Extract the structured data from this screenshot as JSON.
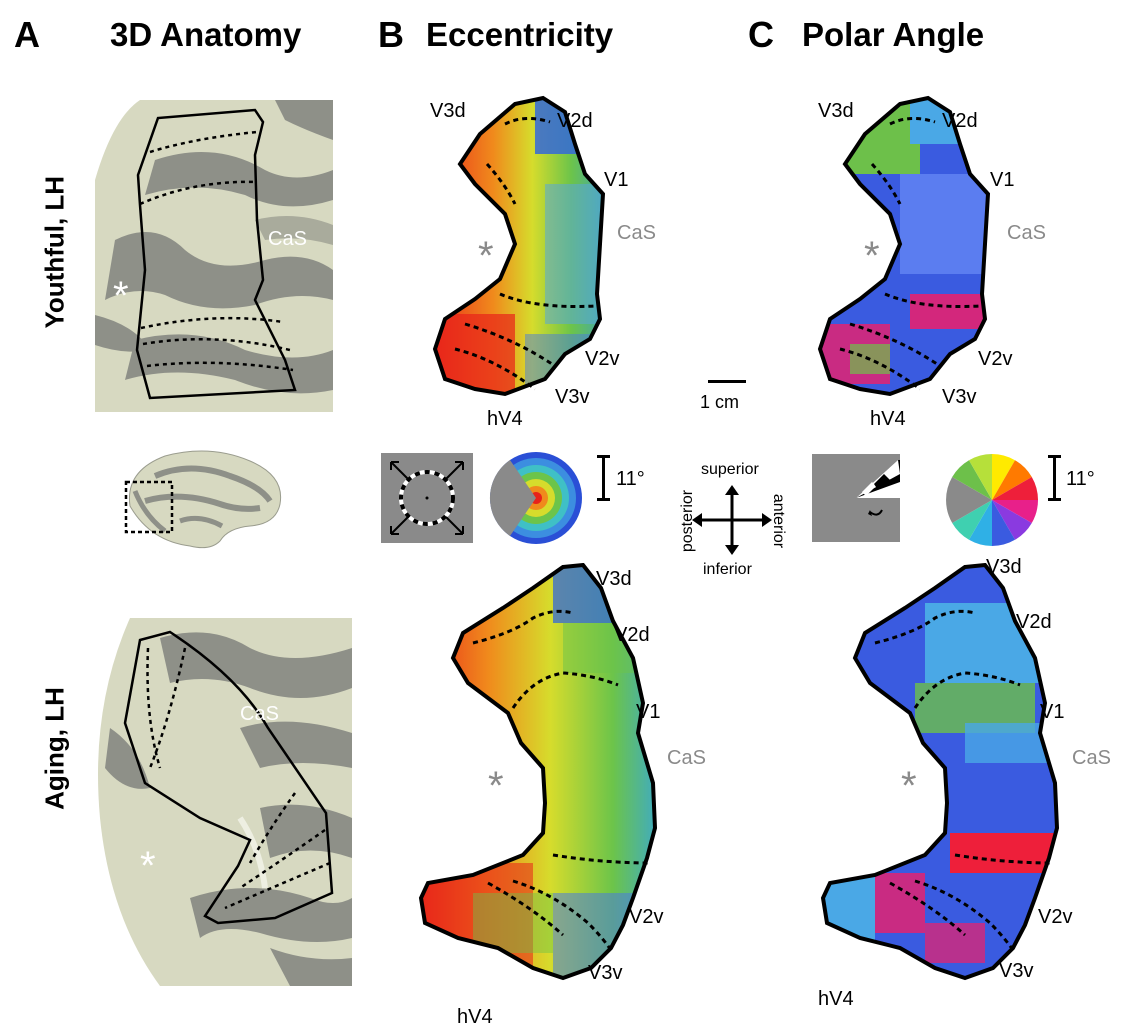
{
  "panels": {
    "a": {
      "letter": "A",
      "title": "3D Anatomy"
    },
    "b": {
      "letter": "B",
      "title": "Eccentricity"
    },
    "c": {
      "letter": "C",
      "title": "Polar Angle"
    }
  },
  "rows": {
    "top": "Youthful, LH",
    "bottom": "Aging, LH"
  },
  "labels": {
    "v3d": "V3d",
    "v2d": "V2d",
    "v1": "V1",
    "cas": "CaS",
    "v2v": "V2v",
    "v3v": "V3v",
    "hv4": "hV4",
    "star": "*"
  },
  "scale_bar": {
    "label": "1 cm"
  },
  "legend": {
    "ecc_extent": "11°",
    "polar_extent": "11°",
    "directions": {
      "superior": "superior",
      "inferior": "inferior",
      "posterior": "posterior",
      "anterior": "anterior"
    }
  },
  "colors": {
    "cortex_light": "#d7d9c1",
    "cortex_dark": "#8e9088",
    "outline": "#000000",
    "ecc_center": "#e8221a",
    "ecc_periphery": "#2a4fd6",
    "polar_blue": "#3a5be0",
    "polar_magenta": "#ee1f6a",
    "polar_green": "#6dc04a",
    "stim_gray": "#8a8a8a"
  }
}
